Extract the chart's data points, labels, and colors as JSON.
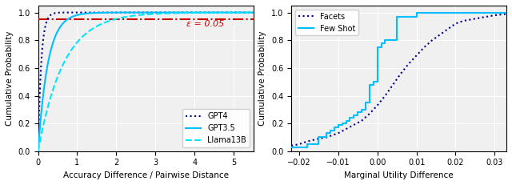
{
  "left": {
    "xlabel": "Accuracy Difference / Pairwise Distance",
    "ylabel": "Cumulative Probability",
    "xlim": [
      0,
      5.5
    ],
    "ylim": [
      0,
      1.05
    ],
    "yticks": [
      0.0,
      0.2,
      0.4,
      0.6,
      0.8,
      1.0
    ],
    "epsilon_line": 0.95,
    "epsilon_label": "ε = 0.05",
    "epsilon_color": "#cc0000",
    "gpt4_color": "#00008b",
    "gpt35_color": "#00bfff",
    "llama_color": "#00e5ff",
    "legend_labels": [
      "GPT4",
      "GPT3.5",
      "Llama13B"
    ]
  },
  "right": {
    "xlabel": "Marginal Utility Difference",
    "ylabel": "Cumulative Probability",
    "xlim": [
      -0.022,
      0.033
    ],
    "ylim": [
      0.0,
      1.05
    ],
    "yticks": [
      0.0,
      0.2,
      0.4,
      0.6,
      0.8,
      1.0
    ],
    "facets_color": "#00008b",
    "fewshot_color": "#00bfff",
    "legend_labels": [
      "Facets",
      "Few Shot"
    ]
  },
  "background_color": "#f0f0f0"
}
